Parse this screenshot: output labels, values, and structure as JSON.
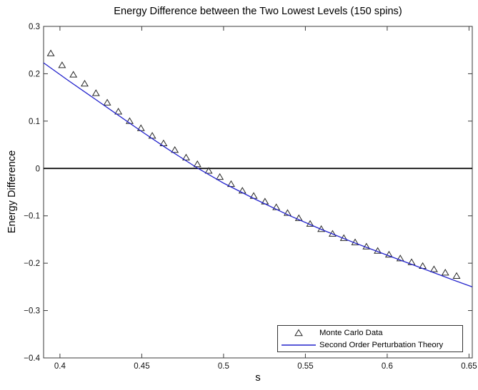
{
  "figure": {
    "title": "Energy Difference between the Two Lowest Levels (150 spins)",
    "xlabel": "s",
    "ylabel": "Energy Difference"
  },
  "legend": {
    "position": "south-east",
    "entries": [
      {
        "marker": "triangle-up-icon",
        "label": "Monte Carlo Data"
      },
      {
        "marker": "blue-line-icon",
        "label": "Second Order Perturbation Theory"
      }
    ]
  },
  "chart_data": {
    "type": "scatter",
    "title": "Energy Difference between the Two Lowest Levels (150 spins)",
    "xlabel": "s",
    "ylabel": "Energy Difference",
    "xlim": [
      0.39,
      0.652
    ],
    "ylim": [
      -0.4,
      0.3
    ],
    "xticks": [
      0.4,
      0.45,
      0.5,
      0.55,
      0.6,
      0.65
    ],
    "xtick_labels": [
      "0.4",
      "0.45",
      "0.5",
      "0.55",
      "0.6",
      "0.65"
    ],
    "yticks": [
      -0.4,
      -0.3,
      -0.2,
      -0.1,
      0,
      0.1,
      0.2,
      0.3
    ],
    "ytick_labels": [
      "−0.4",
      "−0.3",
      "−0.2",
      "−0.1",
      "0",
      "0.1",
      "0.2",
      "0.3"
    ],
    "grid": false,
    "zero_line": {
      "y": 0,
      "color": "#000000"
    },
    "axis_color": "#3a3a3a",
    "legend_position": "south-east",
    "series": [
      {
        "name": "Monte Carlo Data",
        "type": "scatter",
        "marker": "triangle-up",
        "color": "#262626",
        "x": [
          0.3944,
          0.4013,
          0.4082,
          0.4151,
          0.422,
          0.4289,
          0.4357,
          0.4426,
          0.4495,
          0.4564,
          0.4633,
          0.4702,
          0.4771,
          0.484,
          0.4909,
          0.4977,
          0.5046,
          0.5115,
          0.5184,
          0.5253,
          0.5322,
          0.5391,
          0.546,
          0.5529,
          0.5597,
          0.5666,
          0.5735,
          0.5804,
          0.5873,
          0.5942,
          0.6011,
          0.608,
          0.6149,
          0.6217,
          0.6286,
          0.6355,
          0.6424
        ],
        "y": [
          0.243,
          0.218,
          0.198,
          0.179,
          0.159,
          0.139,
          0.12,
          0.1,
          0.085,
          0.069,
          0.053,
          0.039,
          0.023,
          0.009,
          -0.005,
          -0.018,
          -0.033,
          -0.047,
          -0.058,
          -0.07,
          -0.082,
          -0.094,
          -0.105,
          -0.117,
          -0.128,
          -0.138,
          -0.147,
          -0.156,
          -0.165,
          -0.174,
          -0.182,
          -0.19,
          -0.198,
          -0.206,
          -0.213,
          -0.22,
          -0.227
        ]
      },
      {
        "name": "Second Order Perturbation Theory",
        "type": "line",
        "color": "#2222cc",
        "x": [
          0.39,
          0.405,
          0.42,
          0.435,
          0.45,
          0.465,
          0.484,
          0.5,
          0.52,
          0.54,
          0.56,
          0.58,
          0.6,
          0.62,
          0.64,
          0.652
        ],
        "y": [
          0.223,
          0.186,
          0.15,
          0.114,
          0.078,
          0.043,
          0.001,
          -0.031,
          -0.066,
          -0.099,
          -0.129,
          -0.157,
          -0.183,
          -0.209,
          -0.235,
          -0.25
        ]
      }
    ]
  }
}
